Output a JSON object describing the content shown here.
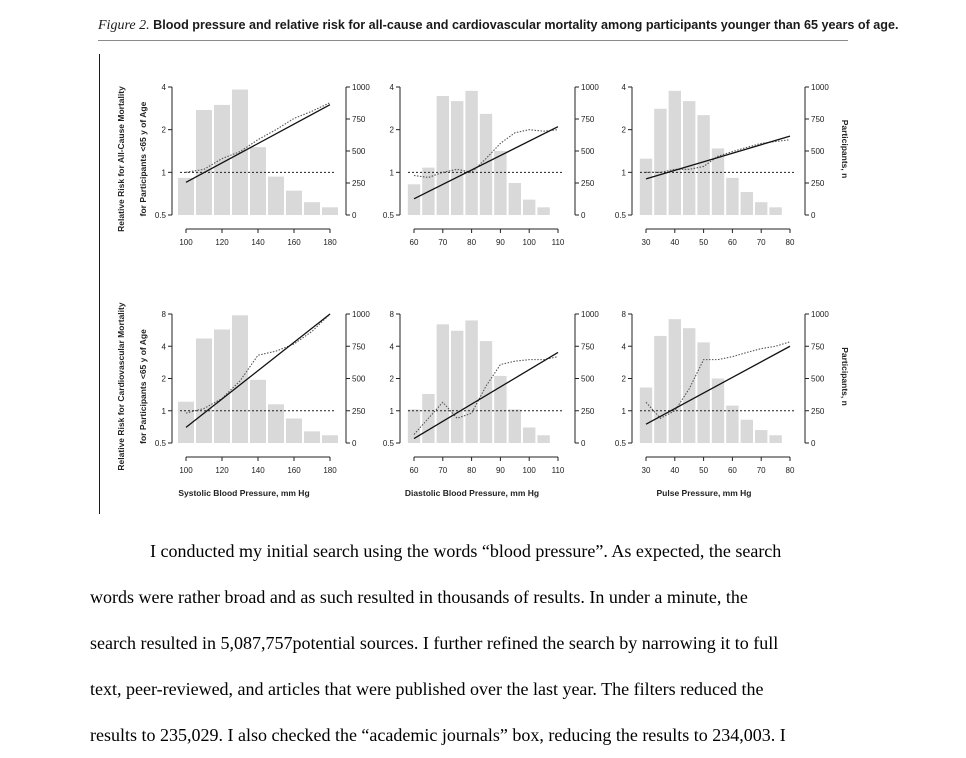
{
  "figure": {
    "label": "Figure 2.",
    "title": "Blood pressure and relative risk for all-cause and cardiovascular mortality among participants younger than 65 years of age.",
    "right_axis_label": "Participants, n",
    "rows": [
      {
        "ylabel_lines": [
          "Relative Risk for All-Cause Mortality",
          "for Participants <65 y of Age"
        ],
        "yticks": [
          "0.5",
          "1",
          "2",
          "4"
        ]
      },
      {
        "ylabel_lines": [
          "Relative Risk for Cardiovascular Mortality",
          "for Participants <65 y of Age"
        ],
        "yticks": [
          "0.5",
          "1",
          "2",
          "4",
          "8"
        ]
      }
    ],
    "right_ticks": [
      "0",
      "250",
      "500",
      "750",
      "1000"
    ],
    "columns": [
      {
        "xlabel": "Systolic Blood Pressure, mm Hg",
        "xticks": [
          "100",
          "120",
          "140",
          "160",
          "180"
        ]
      },
      {
        "xlabel": "Diastolic Blood Pressure, mm Hg",
        "xticks": [
          "60",
          "70",
          "80",
          "90",
          "100",
          "110"
        ]
      },
      {
        "xlabel": "Pulse Pressure, mm Hg",
        "xticks": [
          "30",
          "40",
          "50",
          "60",
          "70",
          "80"
        ]
      }
    ]
  },
  "chart_data": [
    {
      "type": "bar+line",
      "panel": "all-cause / systolic",
      "x_range": [
        100,
        180
      ],
      "y_scale": "log2",
      "y_range": [
        0.5,
        4
      ],
      "y2_range": [
        0,
        1000
      ],
      "categories": [
        100,
        110,
        120,
        130,
        140,
        150,
        160,
        170,
        180
      ],
      "participants": [
        290,
        820,
        860,
        980,
        530,
        300,
        190,
        100,
        60
      ],
      "linear_fit": {
        "x": [
          100,
          180
        ],
        "rr": [
          0.85,
          3.0
        ]
      },
      "spline": {
        "x": [
          100,
          110,
          120,
          130,
          140,
          150,
          160,
          170,
          180
        ],
        "rr": [
          1.0,
          1.05,
          1.25,
          1.4,
          1.7,
          2.0,
          2.4,
          2.7,
          3.1
        ]
      },
      "reference": 1
    },
    {
      "type": "bar+line",
      "panel": "all-cause / diastolic",
      "x_range": [
        60,
        110
      ],
      "y_scale": "log2",
      "y_range": [
        0.5,
        4
      ],
      "y2_range": [
        0,
        1000
      ],
      "categories": [
        60,
        65,
        70,
        75,
        80,
        85,
        90,
        95,
        100,
        105,
        110
      ],
      "participants": [
        240,
        370,
        930,
        890,
        970,
        790,
        500,
        250,
        120,
        60,
        0
      ],
      "linear_fit": {
        "x": [
          60,
          110
        ],
        "rr": [
          0.65,
          2.1
        ]
      },
      "spline": {
        "x": [
          60,
          65,
          70,
          75,
          80,
          85,
          90,
          95,
          100,
          105,
          110
        ],
        "rr": [
          0.95,
          0.92,
          1.0,
          1.05,
          1.0,
          1.25,
          1.6,
          1.9,
          2.0,
          1.95,
          2.0
        ]
      },
      "reference": 1
    },
    {
      "type": "bar+line",
      "panel": "all-cause / pulse",
      "x_range": [
        30,
        80
      ],
      "y_scale": "log2",
      "y_range": [
        0.5,
        4
      ],
      "y2_range": [
        0,
        1000
      ],
      "categories": [
        30,
        35,
        40,
        45,
        50,
        55,
        60,
        65,
        70,
        75,
        80
      ],
      "participants": [
        440,
        830,
        970,
        890,
        780,
        520,
        290,
        180,
        100,
        60,
        0
      ],
      "linear_fit": {
        "x": [
          30,
          80
        ],
        "rr": [
          0.9,
          1.8
        ]
      },
      "spline": {
        "x": [
          30,
          35,
          40,
          45,
          50,
          55,
          60,
          65,
          70,
          75,
          80
        ],
        "rr": [
          1.0,
          1.0,
          1.05,
          1.05,
          1.1,
          1.3,
          1.4,
          1.5,
          1.6,
          1.65,
          1.7
        ]
      },
      "reference": 1
    },
    {
      "type": "bar+line",
      "panel": "cardiovascular / systolic",
      "x_range": [
        100,
        180
      ],
      "y_scale": "log2",
      "y_range": [
        0.5,
        8
      ],
      "y2_range": [
        0,
        1000
      ],
      "categories": [
        100,
        110,
        120,
        130,
        140,
        150,
        160,
        170,
        180
      ],
      "participants": [
        320,
        810,
        880,
        990,
        490,
        300,
        190,
        90,
        60
      ],
      "linear_fit": {
        "x": [
          100,
          180
        ],
        "rr": [
          0.7,
          8.0
        ]
      },
      "spline": {
        "x": [
          100,
          110,
          120,
          130,
          140,
          150,
          160,
          170,
          180
        ],
        "rr": [
          0.95,
          1.05,
          1.3,
          1.9,
          3.3,
          3.6,
          4.2,
          5.5,
          8.0
        ]
      },
      "reference": 1
    },
    {
      "type": "bar+line",
      "panel": "cardiovascular / diastolic",
      "x_range": [
        60,
        110
      ],
      "y_scale": "log2",
      "y_range": [
        0.5,
        8
      ],
      "y2_range": [
        0,
        1000
      ],
      "categories": [
        60,
        65,
        70,
        75,
        80,
        85,
        90,
        95,
        100,
        105,
        110
      ],
      "participants": [
        260,
        380,
        920,
        870,
        950,
        790,
        520,
        260,
        120,
        60,
        0
      ],
      "linear_fit": {
        "x": [
          60,
          110
        ],
        "rr": [
          0.55,
          3.5
        ]
      },
      "spline": {
        "x": [
          60,
          65,
          70,
          75,
          80,
          85,
          90,
          95,
          100,
          105,
          110
        ],
        "rr": [
          0.6,
          0.85,
          1.2,
          0.85,
          0.95,
          1.7,
          2.7,
          2.9,
          3.0,
          3.0,
          3.2
        ]
      },
      "reference": 1
    },
    {
      "type": "bar+line",
      "panel": "cardiovascular / pulse",
      "x_range": [
        30,
        80
      ],
      "y_scale": "log2",
      "y_range": [
        0.5,
        8
      ],
      "y2_range": [
        0,
        1000
      ],
      "categories": [
        30,
        35,
        40,
        45,
        50,
        55,
        60,
        65,
        70,
        75,
        80
      ],
      "participants": [
        430,
        830,
        960,
        890,
        780,
        500,
        290,
        180,
        100,
        60,
        0
      ],
      "linear_fit": {
        "x": [
          30,
          80
        ],
        "rr": [
          0.75,
          4.0
        ]
      },
      "spline": {
        "x": [
          30,
          35,
          40,
          45,
          50,
          55,
          60,
          65,
          70,
          75,
          80
        ],
        "rr": [
          1.2,
          0.85,
          1.0,
          1.6,
          3.0,
          3.0,
          3.2,
          3.5,
          3.8,
          4.0,
          4.4
        ]
      },
      "reference": 1
    }
  ],
  "body": {
    "lines": [
      "I conducted my initial search using the words “blood pressure”. As expected, the search",
      "words were rather broad and as such resulted in thousands of results. In under a minute, the",
      "search resulted in 5,087,757potential sources. I further refined the search by narrowing it to full",
      "text, peer-reviewed, and articles that were published over the last year. The filters reduced the",
      "results to 235,029. I also checked the “academic journals” box, reducing the results to 234,003. I"
    ]
  }
}
